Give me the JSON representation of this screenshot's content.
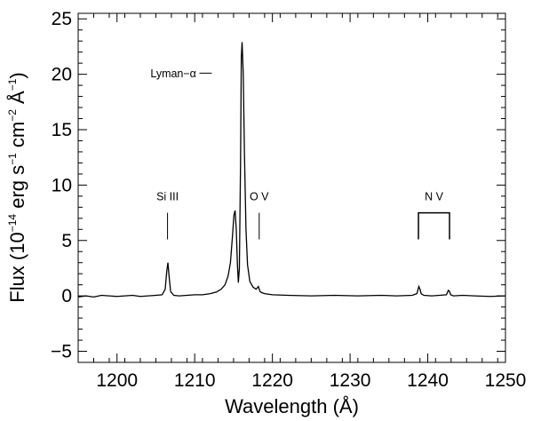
{
  "chart_data": {
    "type": "line",
    "title": "",
    "xlabel": "Wavelength (Å)",
    "ylabel": {
      "prefix": "Flux (10",
      "exp1": "−14",
      "mid1": " erg s",
      "exp2": "−1",
      "mid2": " cm",
      "exp3": "−2",
      "mid3": " Å",
      "exp4": "−1",
      "suffix": ")"
    },
    "xlim": [
      1195,
      1250
    ],
    "ylim": [
      -6,
      25.5
    ],
    "xticks": [
      1200,
      1210,
      1220,
      1230,
      1240,
      1250
    ],
    "xtick_labels": [
      "1200",
      "1210",
      "1220",
      "1230",
      "1240",
      "1250"
    ],
    "yticks": [
      -5,
      0,
      5,
      10,
      15,
      20,
      25
    ],
    "ytick_labels": [
      "−5",
      "0",
      "5",
      "10",
      "15",
      "20",
      "25"
    ],
    "series": [
      {
        "x": [
          1195.0,
          1196.0,
          1197.0,
          1198.0,
          1199.0,
          1200.0,
          1201.0,
          1202.0,
          1203.0,
          1204.0,
          1205.0,
          1205.8,
          1206.2,
          1206.4,
          1206.55,
          1206.7,
          1206.9,
          1207.3,
          1208.0,
          1209.0,
          1210.0,
          1211.0,
          1212.0,
          1212.8,
          1213.4,
          1213.9,
          1214.3,
          1214.6,
          1214.85,
          1215.05,
          1215.2,
          1215.35,
          1215.5,
          1215.62,
          1215.75,
          1215.9,
          1216.0,
          1216.1,
          1216.25,
          1216.4,
          1216.6,
          1216.8,
          1217.1,
          1217.5,
          1217.9,
          1218.2,
          1218.4,
          1218.6,
          1219.0,
          1220.0,
          1222.0,
          1225.0,
          1228.0,
          1231.0,
          1234.0,
          1236.0,
          1238.0,
          1238.6,
          1238.85,
          1239.0,
          1239.15,
          1239.5,
          1240.5,
          1241.5,
          1242.4,
          1242.65,
          1242.8,
          1242.95,
          1243.3,
          1244.5,
          1246.0,
          1248.0,
          1250.0
        ],
        "y": [
          -0.1,
          0.0,
          -0.1,
          0.05,
          0.0,
          -0.05,
          0.0,
          0.05,
          -0.05,
          0.0,
          0.05,
          0.1,
          0.6,
          2.2,
          3.0,
          1.8,
          0.4,
          0.05,
          0.0,
          0.05,
          0.1,
          0.1,
          0.2,
          0.35,
          0.6,
          1.0,
          1.8,
          3.0,
          5.3,
          7.3,
          7.7,
          6.0,
          2.8,
          1.2,
          2.5,
          12.0,
          21.5,
          22.9,
          20.0,
          13.0,
          6.0,
          2.8,
          1.3,
          0.8,
          0.6,
          0.85,
          0.4,
          0.3,
          0.2,
          0.1,
          0.05,
          0.0,
          0.05,
          0.0,
          0.05,
          0.0,
          0.05,
          0.2,
          0.85,
          0.6,
          0.2,
          0.05,
          0.0,
          0.05,
          0.1,
          0.5,
          0.4,
          0.1,
          0.0,
          0.05,
          0.0,
          -0.05,
          0.0
        ]
      }
    ],
    "annotations": [
      {
        "text": "Lyman−α",
        "anchor_x": 1215.67,
        "anchor_y": 20.1
      },
      {
        "text": "Si III",
        "anchor_x": 1206.5,
        "anchor_y": 7.5
      },
      {
        "text": "O V",
        "anchor_x": 1218.3,
        "anchor_y": 7.5
      },
      {
        "text": "N V",
        "anchor_x": 1240.8,
        "anchor_y": 7.5,
        "bracket": [
          1238.8,
          1242.8
        ]
      }
    ],
    "grid": false,
    "legend": "none"
  }
}
